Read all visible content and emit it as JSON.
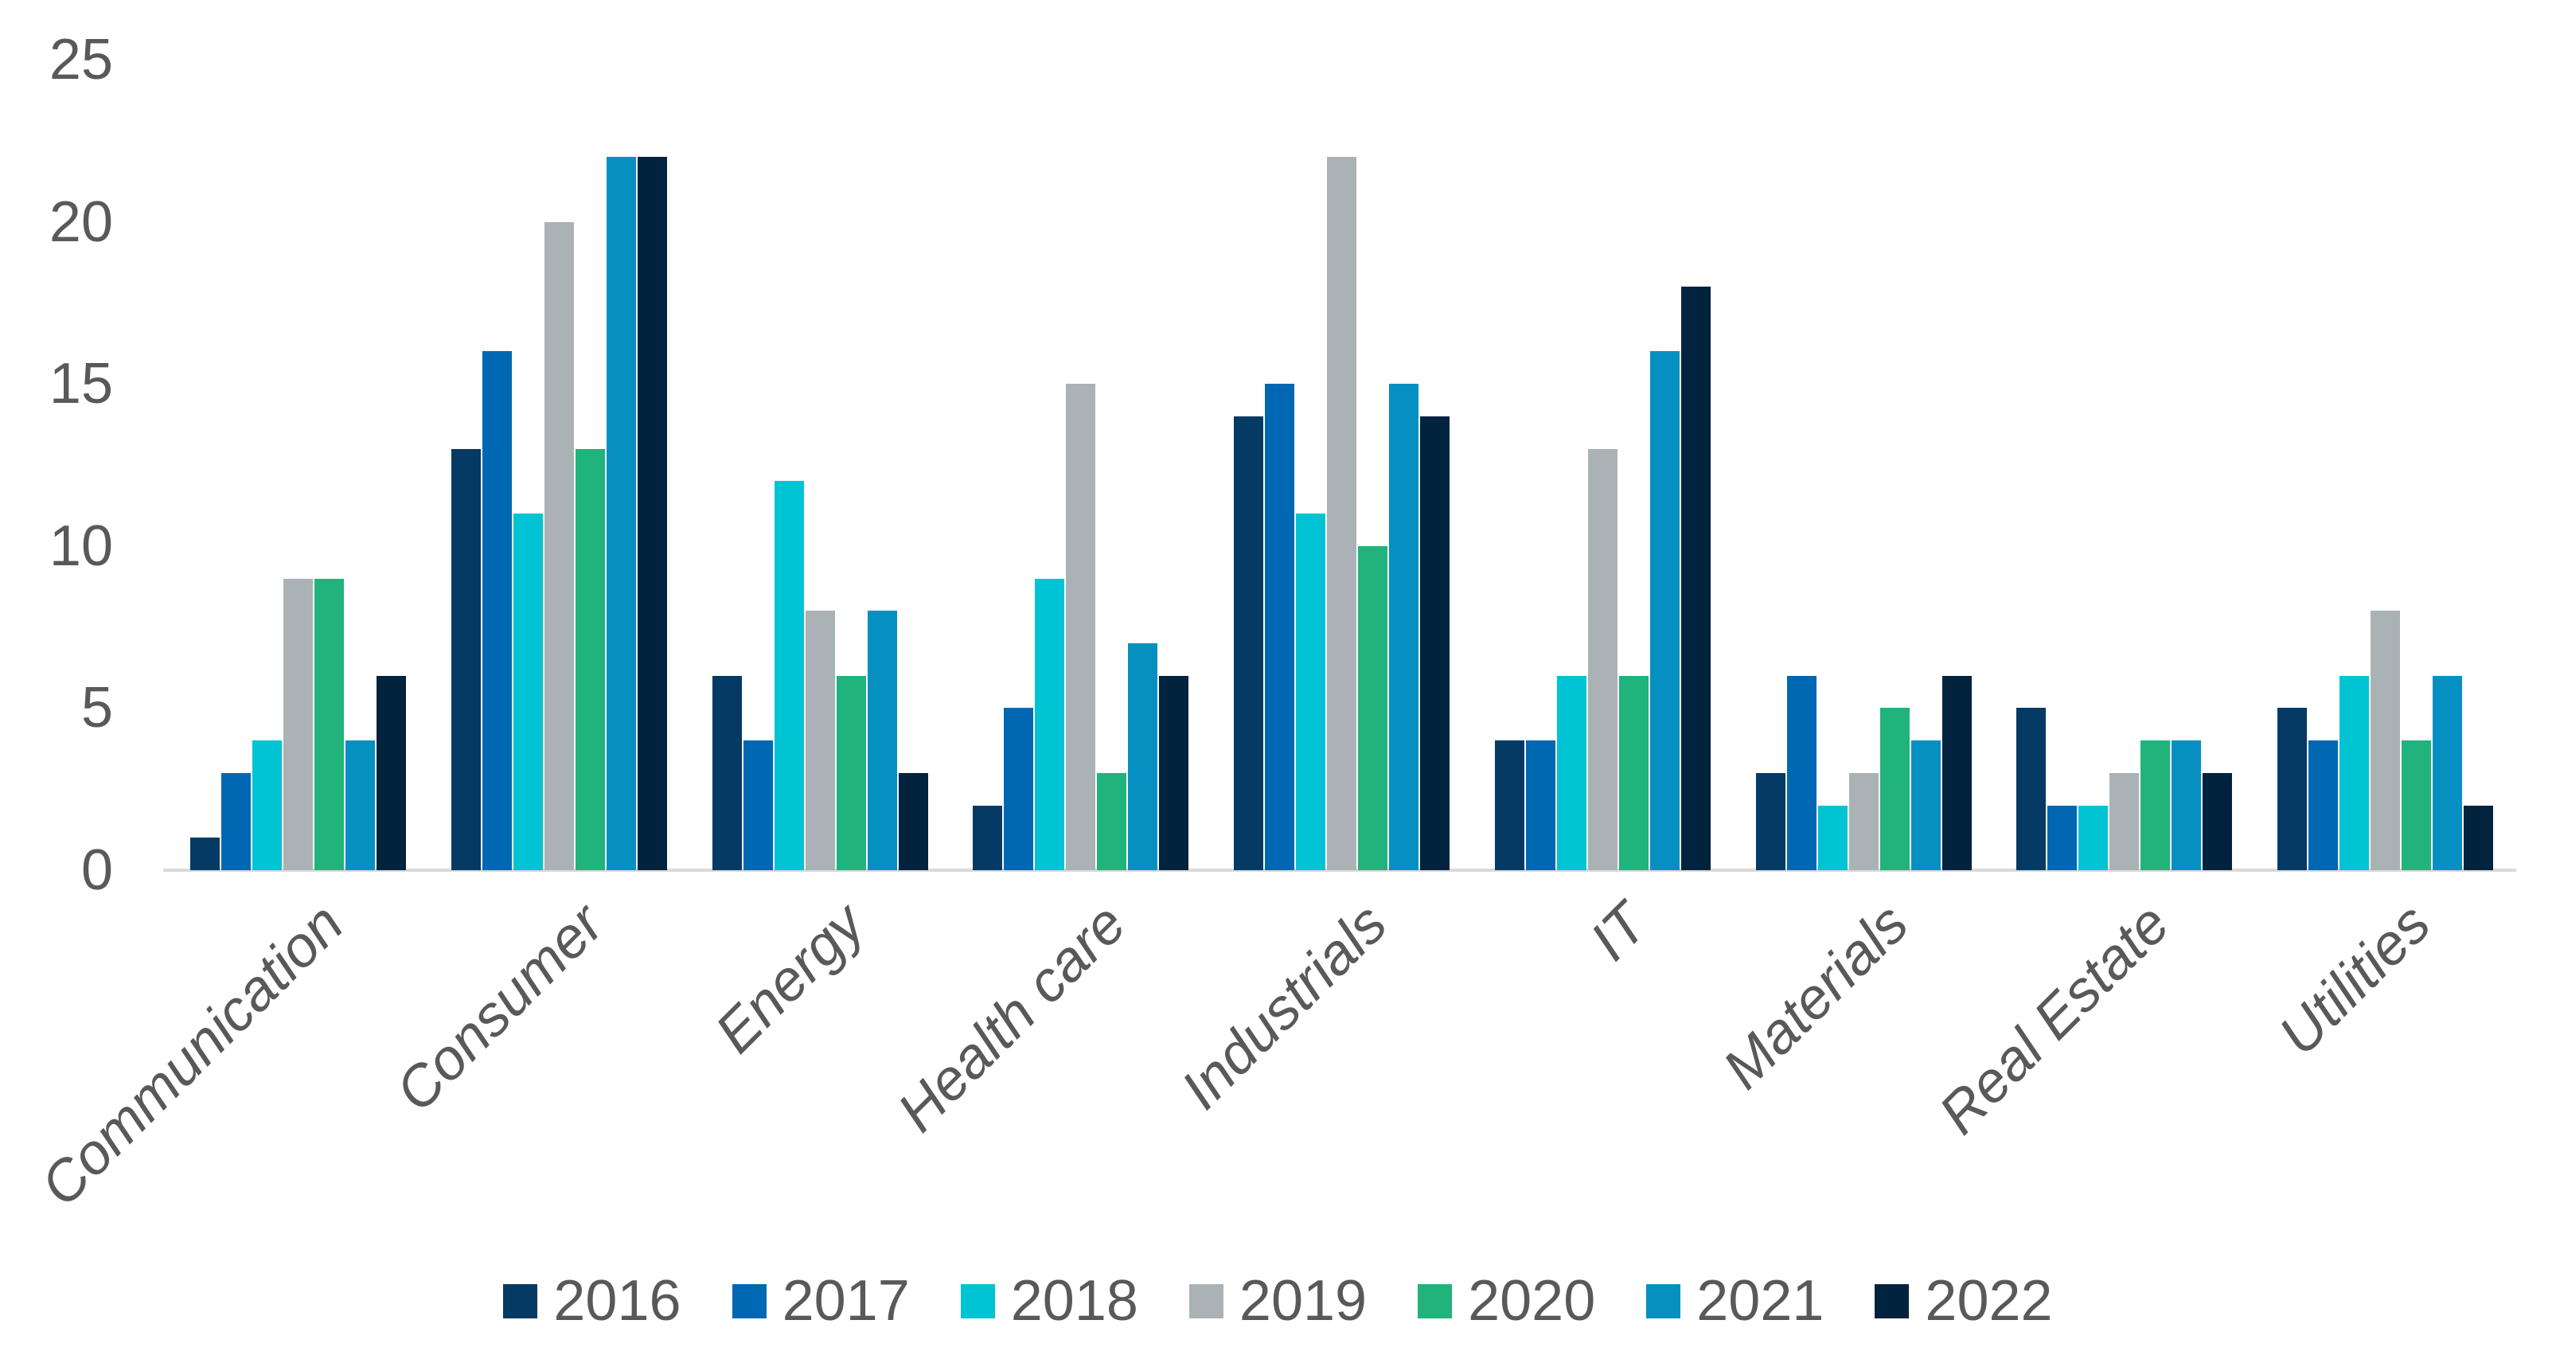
{
  "chart_data": {
    "type": "bar",
    "title": "",
    "xlabel": "",
    "ylabel": "",
    "categories": [
      "Communication",
      "Consumer",
      "Energy",
      "Health care",
      "Industrials",
      "IT",
      "Materials",
      "Real Estate",
      "Utilities"
    ],
    "series": [
      {
        "name": "2016",
        "color": "#053A64",
        "values": [
          1,
          13,
          6,
          2,
          14,
          4,
          3,
          5,
          5
        ]
      },
      {
        "name": "2017",
        "color": "#0068B2",
        "values": [
          3,
          16,
          4,
          5,
          15,
          4,
          6,
          2,
          4
        ]
      },
      {
        "name": "2018",
        "color": "#00C4D3",
        "values": [
          4,
          11,
          12,
          9,
          11,
          6,
          2,
          2,
          6
        ]
      },
      {
        "name": "2019",
        "color": "#ABB2B5",
        "values": [
          9,
          20,
          8,
          15,
          22,
          13,
          3,
          3,
          8
        ]
      },
      {
        "name": "2020",
        "color": "#20B37B",
        "values": [
          9,
          13,
          6,
          3,
          10,
          6,
          5,
          4,
          4
        ]
      },
      {
        "name": "2021",
        "color": "#0590C1",
        "values": [
          4,
          22,
          8,
          7,
          15,
          16,
          4,
          4,
          6
        ]
      },
      {
        "name": "2022",
        "color": "#02233E",
        "values": [
          6,
          22,
          3,
          6,
          14,
          18,
          6,
          3,
          2
        ]
      }
    ],
    "ylim": [
      0,
      25
    ],
    "yticks": [
      0,
      5,
      10,
      15,
      20,
      25
    ],
    "grid": false,
    "legend_position": "bottom",
    "axis_line_color": "#D9D9D9",
    "text_color": "#595959",
    "background_color": "#FFFFFF"
  }
}
